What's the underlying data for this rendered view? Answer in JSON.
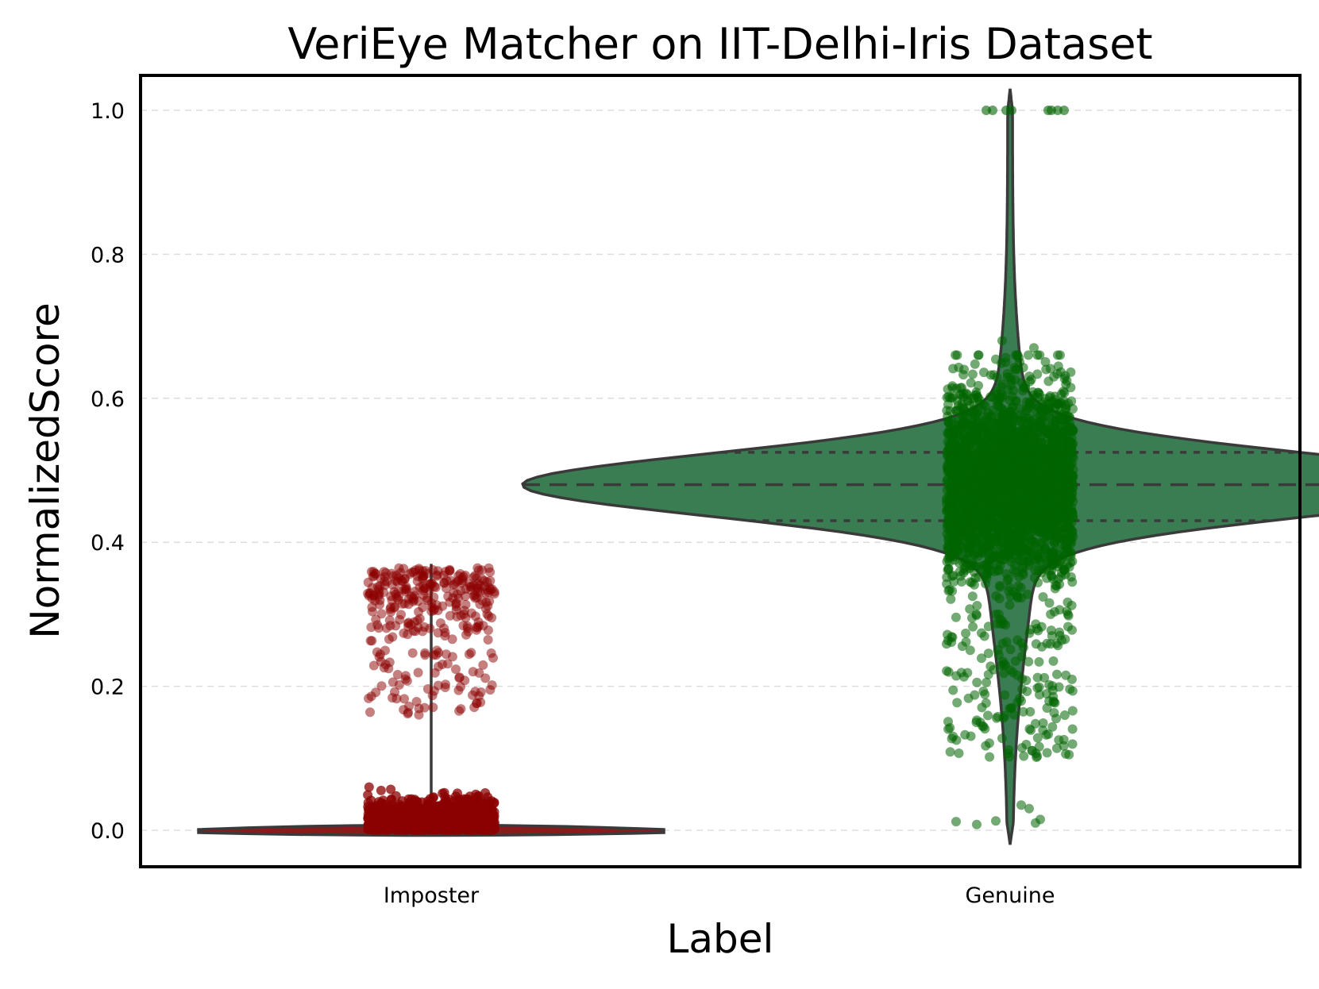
{
  "chart_data": {
    "type": "violin",
    "title": "VeriEye Matcher on IIT-Delhi-Iris Dataset",
    "xlabel": "Label",
    "ylabel": "NormalizedScore",
    "categories": [
      "Imposter",
      "Genuine"
    ],
    "ylim": [
      -0.05,
      1.05
    ],
    "yticks": [
      "0.0",
      "0.2",
      "0.4",
      "0.6",
      "0.8",
      "1.0"
    ],
    "grid": "horizontal dashed",
    "overlay": "jittered strip points",
    "series": [
      {
        "category": "Imposter",
        "color": "#8b0000",
        "violin_range": [
          0.0,
          0.37
        ],
        "median": 0.0,
        "point_clusters": [
          {
            "range": [
              0.0,
              0.06
            ],
            "density": "very high"
          },
          {
            "range": [
              0.16,
              0.25
            ],
            "density": "low"
          },
          {
            "range": [
              0.26,
              0.37
            ],
            "density": "medium"
          }
        ]
      },
      {
        "category": "Genuine",
        "color": "#006400",
        "violin_fill": "#3a7d53",
        "violin_range": [
          -0.02,
          1.03
        ],
        "quartiles": [
          0.43,
          0.48,
          0.525
        ],
        "point_range": [
          0.01,
          1.0
        ],
        "point_clusters": [
          {
            "range": [
              0.3,
              0.65
            ],
            "density": "very high"
          },
          {
            "range": [
              0.1,
              0.3
            ],
            "density": "low"
          },
          {
            "range": [
              0.01,
              0.04
            ],
            "density": "sparse"
          },
          {
            "range": [
              1.0,
              1.0
            ],
            "density": "sparse"
          }
        ]
      }
    ]
  }
}
